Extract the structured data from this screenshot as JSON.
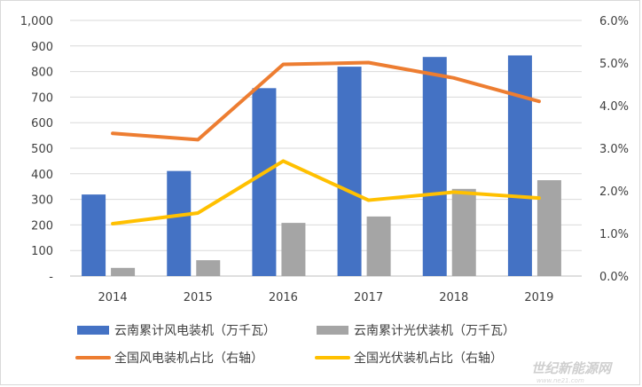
{
  "chart_data": {
    "type": "bar",
    "categories": [
      "2014",
      "2015",
      "2016",
      "2017",
      "2018",
      "2019"
    ],
    "series": [
      {
        "name": "云南累计风电装机（万千瓦）",
        "kind": "bar",
        "axis": "left",
        "color": "#4472c4",
        "values": [
          319,
          411,
          735,
          819,
          857,
          863
        ]
      },
      {
        "name": "云南累计光伏装机（万千瓦）",
        "kind": "bar",
        "axis": "left",
        "color": "#a5a5a5",
        "values": [
          32,
          62,
          208,
          233,
          341,
          375
        ]
      },
      {
        "name": "全国风电装机占比（右轴）",
        "kind": "line",
        "axis": "right",
        "color": "#ed7d31",
        "values": [
          3.35,
          3.2,
          4.97,
          5.01,
          4.65,
          4.1
        ]
      },
      {
        "name": "全国光伏装机占比（右轴）",
        "kind": "line",
        "axis": "right",
        "color": "#ffc000",
        "values": [
          1.23,
          1.48,
          2.7,
          1.78,
          1.97,
          1.83
        ]
      }
    ],
    "left_axis": {
      "ylim": [
        0,
        1000
      ],
      "ticks": [
        "-",
        "100",
        "200",
        "300",
        "400",
        "500",
        "600",
        "700",
        "800",
        "900",
        "1,000"
      ]
    },
    "right_axis": {
      "ylim": [
        0,
        6
      ],
      "ticks": [
        "0.0%",
        "1.0%",
        "2.0%",
        "3.0%",
        "4.0%",
        "5.0%",
        "6.0%"
      ]
    },
    "grid": true,
    "legend_position": "bottom"
  },
  "watermark": {
    "text": "世纪新能源网",
    "sub": "www.ne21.com"
  }
}
